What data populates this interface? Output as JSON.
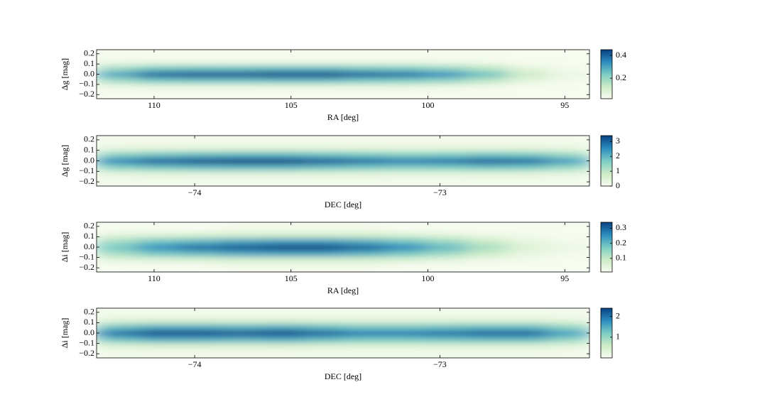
{
  "chart_data": [
    {
      "type": "heatmap",
      "xlabel": "RA [deg]",
      "ylabel": "Δg [mag]",
      "xlim": [
        112.1,
        94.1
      ],
      "xticks": [
        110,
        105,
        100,
        95
      ],
      "ylim": [
        -0.24,
        0.24
      ],
      "yticks": [
        0.2,
        0.1,
        {
          "value": 0,
          "label": "0.0"
        },
        {
          "value": -0.1,
          "label": "−0.1"
        },
        {
          "value": -0.2,
          "label": "−0.2"
        }
      ],
      "xbins": [
        112.1,
        110.6,
        109.1,
        107.6,
        106.1,
        104.6,
        103.1,
        101.6,
        100.1,
        98.6,
        97.1,
        95.6,
        94.1
      ],
      "ybins": [
        -0.24,
        -0.15,
        -0.09,
        -0.03,
        0.03,
        0.09,
        0.15,
        0.24
      ],
      "values": [
        [
          0.01,
          0.01,
          0.01,
          0.01,
          0.01,
          0.01,
          0.01,
          0.01,
          0.01,
          0.01,
          0.0,
          0.0
        ],
        [
          0.05,
          0.06,
          0.06,
          0.06,
          0.06,
          0.06,
          0.06,
          0.06,
          0.05,
          0.04,
          0.02,
          0.01
        ],
        [
          0.18,
          0.24,
          0.25,
          0.25,
          0.26,
          0.26,
          0.24,
          0.23,
          0.2,
          0.15,
          0.07,
          0.03
        ],
        [
          0.3,
          0.4,
          0.42,
          0.42,
          0.43,
          0.43,
          0.4,
          0.38,
          0.33,
          0.25,
          0.12,
          0.05
        ],
        [
          0.18,
          0.24,
          0.25,
          0.25,
          0.26,
          0.26,
          0.24,
          0.23,
          0.2,
          0.15,
          0.07,
          0.03
        ],
        [
          0.05,
          0.06,
          0.06,
          0.06,
          0.06,
          0.06,
          0.06,
          0.06,
          0.05,
          0.04,
          0.02,
          0.01
        ],
        [
          0.01,
          0.01,
          0.01,
          0.01,
          0.01,
          0.01,
          0.01,
          0.01,
          0.01,
          0.01,
          0.0,
          0.0
        ]
      ],
      "clim": [
        0.02,
        0.45
      ],
      "cticks": [
        0.2,
        0.4
      ],
      "colormap": [
        "#f7fcf0",
        "#ccebc5",
        "#7bccc4",
        "#2b8cbe",
        "#084081"
      ]
    },
    {
      "type": "heatmap",
      "xlabel": "DEC [deg]",
      "ylabel": "Δg [mag]",
      "xlim": [
        -74.4,
        -72.39
      ],
      "xticks": [
        {
          "value": -74,
          "label": "−74"
        },
        {
          "value": -73,
          "label": "−73"
        }
      ],
      "ylim": [
        -0.24,
        0.24
      ],
      "yticks": [
        0.2,
        0.1,
        {
          "value": 0,
          "label": "0.0"
        },
        {
          "value": -0.1,
          "label": "−0.1"
        },
        {
          "value": -0.2,
          "label": "−0.2"
        }
      ],
      "xbins": [
        -74.4,
        -74.23,
        -74.06,
        -73.9,
        -73.73,
        -73.56,
        -73.4,
        -73.23,
        -73.06,
        -72.89,
        -72.73,
        -72.56,
        -72.39
      ],
      "ybins": [
        -0.24,
        -0.15,
        -0.09,
        -0.03,
        0.03,
        0.09,
        0.15,
        0.24
      ],
      "values": [
        [
          0.08,
          0.09,
          0.1,
          0.1,
          0.1,
          0.09,
          0.09,
          0.08,
          0.08,
          0.09,
          0.09,
          0.07
        ],
        [
          0.39,
          0.45,
          0.48,
          0.5,
          0.5,
          0.47,
          0.44,
          0.41,
          0.42,
          0.45,
          0.44,
          0.35
        ],
        [
          1.56,
          1.8,
          1.92,
          1.98,
          1.98,
          1.86,
          1.74,
          1.62,
          1.68,
          1.8,
          1.74,
          1.38
        ],
        [
          2.6,
          3.0,
          3.2,
          3.3,
          3.3,
          3.1,
          2.9,
          2.7,
          2.8,
          3.0,
          2.9,
          2.3
        ],
        [
          1.56,
          1.8,
          1.92,
          1.98,
          1.98,
          1.86,
          1.74,
          1.62,
          1.68,
          1.8,
          1.74,
          1.38
        ],
        [
          0.39,
          0.45,
          0.48,
          0.5,
          0.5,
          0.47,
          0.44,
          0.41,
          0.42,
          0.45,
          0.44,
          0.35
        ],
        [
          0.08,
          0.09,
          0.1,
          0.1,
          0.1,
          0.09,
          0.09,
          0.08,
          0.08,
          0.09,
          0.09,
          0.07
        ]
      ],
      "clim": [
        0,
        3.4
      ],
      "cticks": [
        0,
        1,
        2,
        3
      ],
      "colormap": [
        "#f7fcf0",
        "#ccebc5",
        "#7bccc4",
        "#2b8cbe",
        "#084081"
      ]
    },
    {
      "type": "heatmap",
      "xlabel": "RA [deg]",
      "ylabel": "Δi [mag]",
      "xlim": [
        112.1,
        94.1
      ],
      "xticks": [
        110,
        105,
        100,
        95
      ],
      "ylim": [
        -0.24,
        0.24
      ],
      "yticks": [
        0.2,
        0.1,
        {
          "value": 0,
          "label": "0.0"
        },
        {
          "value": -0.1,
          "label": "−0.1"
        },
        {
          "value": -0.2,
          "label": "−0.2"
        }
      ],
      "xbins": [
        112.1,
        110.6,
        109.1,
        107.6,
        106.1,
        104.6,
        103.1,
        101.6,
        100.1,
        98.6,
        97.1,
        95.6,
        94.1
      ],
      "ybins": [
        -0.24,
        -0.15,
        -0.09,
        -0.03,
        0.03,
        0.09,
        0.15,
        0.24
      ],
      "values": [
        [
          0.01,
          0.01,
          0.01,
          0.02,
          0.02,
          0.02,
          0.02,
          0.01,
          0.01,
          0.01,
          0.0,
          0.0
        ],
        [
          0.05,
          0.06,
          0.07,
          0.08,
          0.08,
          0.08,
          0.08,
          0.07,
          0.05,
          0.03,
          0.02,
          0.01
        ],
        [
          0.13,
          0.18,
          0.2,
          0.22,
          0.23,
          0.23,
          0.21,
          0.18,
          0.14,
          0.09,
          0.04,
          0.02
        ],
        [
          0.18,
          0.25,
          0.29,
          0.31,
          0.33,
          0.33,
          0.3,
          0.26,
          0.2,
          0.13,
          0.06,
          0.03
        ],
        [
          0.13,
          0.18,
          0.2,
          0.22,
          0.23,
          0.23,
          0.21,
          0.18,
          0.14,
          0.09,
          0.04,
          0.02
        ],
        [
          0.05,
          0.06,
          0.07,
          0.08,
          0.08,
          0.08,
          0.08,
          0.07,
          0.05,
          0.03,
          0.02,
          0.01
        ],
        [
          0.01,
          0.01,
          0.01,
          0.02,
          0.02,
          0.02,
          0.02,
          0.01,
          0.01,
          0.01,
          0.0,
          0.0
        ]
      ],
      "clim": [
        0.01,
        0.34
      ],
      "cticks": [
        0.1,
        0.2,
        0.3
      ],
      "colormap": [
        "#f7fcf0",
        "#ccebc5",
        "#7bccc4",
        "#2b8cbe",
        "#084081"
      ]
    },
    {
      "type": "heatmap",
      "xlabel": "DEC [deg]",
      "ylabel": "Δi [mag]",
      "xlim": [
        -74.4,
        -72.39
      ],
      "xticks": [
        {
          "value": -74,
          "label": "−74"
        },
        {
          "value": -73,
          "label": "−73"
        }
      ],
      "ylim": [
        -0.24,
        0.24
      ],
      "yticks": [
        0.2,
        0.1,
        {
          "value": 0,
          "label": "0.0"
        },
        {
          "value": -0.1,
          "label": "−0.1"
        },
        {
          "value": -0.2,
          "label": "−0.2"
        }
      ],
      "xbins": [
        -74.4,
        -74.23,
        -74.06,
        -73.9,
        -73.73,
        -73.56,
        -73.4,
        -73.23,
        -73.06,
        -72.89,
        -72.73,
        -72.56,
        -72.39
      ],
      "ybins": [
        -0.24,
        -0.15,
        -0.09,
        -0.03,
        0.03,
        0.09,
        0.15,
        0.24
      ],
      "values": [
        [
          0.08,
          0.09,
          0.09,
          0.09,
          0.09,
          0.08,
          0.08,
          0.08,
          0.08,
          0.08,
          0.08,
          0.06
        ],
        [
          0.4,
          0.46,
          0.46,
          0.44,
          0.46,
          0.42,
          0.38,
          0.38,
          0.4,
          0.42,
          0.42,
          0.32
        ],
        [
          1.3,
          1.5,
          1.5,
          1.43,
          1.5,
          1.37,
          1.24,
          1.24,
          1.3,
          1.37,
          1.37,
          1.04
        ],
        [
          2.0,
          2.3,
          2.3,
          2.2,
          2.3,
          2.1,
          1.9,
          1.9,
          2.0,
          2.1,
          2.1,
          1.6
        ],
        [
          1.3,
          1.5,
          1.5,
          1.43,
          1.5,
          1.37,
          1.24,
          1.24,
          1.3,
          1.37,
          1.37,
          1.04
        ],
        [
          0.4,
          0.46,
          0.46,
          0.44,
          0.46,
          0.42,
          0.38,
          0.38,
          0.4,
          0.42,
          0.42,
          0.32
        ],
        [
          0.08,
          0.09,
          0.09,
          0.09,
          0.09,
          0.08,
          0.08,
          0.08,
          0.08,
          0.08,
          0.08,
          0.06
        ]
      ],
      "clim": [
        0,
        2.4
      ],
      "cticks": [
        1,
        2
      ],
      "colormap": [
        "#f7fcf0",
        "#ccebc5",
        "#7bccc4",
        "#2b8cbe",
        "#084081"
      ]
    }
  ]
}
